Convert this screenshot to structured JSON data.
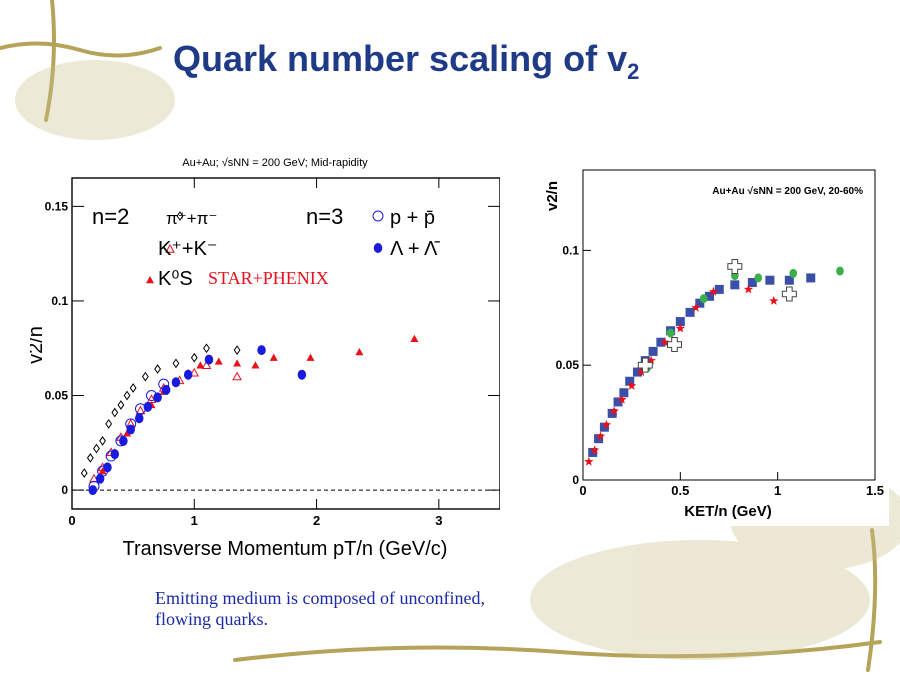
{
  "slide": {
    "title_main": "Quark number scaling of v",
    "title_sub": "2",
    "caption_line1": "Emitting medium is composed of unconfined,",
    "caption_line2": "flowing quarks."
  },
  "colors": {
    "title": "#1f3a87",
    "caption": "#1a2aa8",
    "red": "#e8101a",
    "blue": "#1a1adf",
    "right_blue": "#3a4fa8",
    "green": "#3cae4a",
    "decor": "#b6a35a"
  },
  "chart_data": [
    {
      "type": "scatter",
      "title": "Au+Au; √sNN = 200 GeV; Mid-rapidity",
      "xlabel": "Transverse Momentum pT/n (GeV/c)",
      "ylabel": "v2/n",
      "xlim": [
        0,
        3.5
      ],
      "ylim": [
        -0.01,
        0.165
      ],
      "xticks": [
        "0",
        "1",
        "2",
        "3"
      ],
      "yticks": [
        "0",
        "0.05",
        "0.1",
        "0.15"
      ],
      "legend": {
        "n2": "n=2",
        "n3": "n=3",
        "pion": "π⁺+π⁻",
        "kaon": "K⁺+K⁻",
        "k0s": "K⁰S",
        "proton": "p + p̄",
        "lambda": "Λ + Λ̄"
      },
      "annotation": "STAR+PHENIX",
      "grid": false,
      "series": [
        {
          "name": "π⁺+π⁻",
          "marker": "open-diamond",
          "color": "#000000",
          "x": [
            0.1,
            0.15,
            0.2,
            0.25,
            0.3,
            0.35,
            0.4,
            0.45,
            0.5,
            0.6,
            0.7,
            0.85,
            1.0,
            1.1,
            1.35
          ],
          "y": [
            0.009,
            0.017,
            0.022,
            0.026,
            0.035,
            0.041,
            0.045,
            0.05,
            0.054,
            0.06,
            0.064,
            0.067,
            0.07,
            0.075,
            0.074
          ]
        },
        {
          "name": "K⁺+K⁻",
          "marker": "open-triangle",
          "color": "#e8101a",
          "x": [
            0.18,
            0.25,
            0.32,
            0.4,
            0.48,
            0.56,
            0.65,
            0.75,
            0.88,
            1.0,
            1.1,
            1.35
          ],
          "y": [
            0.006,
            0.012,
            0.02,
            0.028,
            0.035,
            0.042,
            0.048,
            0.054,
            0.058,
            0.062,
            0.066,
            0.06
          ]
        },
        {
          "name": "K⁰S",
          "marker": "filled-triangle",
          "color": "#e8101a",
          "x": [
            0.25,
            0.35,
            0.45,
            0.55,
            0.65,
            0.75,
            0.85,
            0.95,
            1.05,
            1.2,
            1.35,
            1.5,
            1.65,
            1.95,
            2.35,
            2.8
          ],
          "y": [
            0.01,
            0.02,
            0.03,
            0.038,
            0.045,
            0.052,
            0.057,
            0.062,
            0.066,
            0.068,
            0.067,
            0.066,
            0.07,
            0.07,
            0.073,
            0.08
          ]
        },
        {
          "name": "p + p̄",
          "marker": "open-circle",
          "color": "#1a1adf",
          "x": [
            0.18,
            0.25,
            0.32,
            0.4,
            0.48,
            0.56,
            0.65,
            0.75
          ],
          "y": [
            0.002,
            0.01,
            0.018,
            0.026,
            0.035,
            0.043,
            0.05,
            0.056
          ]
        },
        {
          "name": "Λ + Λ̄",
          "marker": "filled-circle",
          "color": "#1a1adf",
          "x": [
            0.17,
            0.23,
            0.29,
            0.35,
            0.42,
            0.48,
            0.55,
            0.62,
            0.7,
            0.77,
            0.85,
            0.95,
            1.12,
            1.55,
            1.88
          ],
          "y": [
            0.0,
            0.006,
            0.012,
            0.019,
            0.026,
            0.032,
            0.038,
            0.044,
            0.049,
            0.053,
            0.057,
            0.061,
            0.069,
            0.074,
            0.061
          ]
        }
      ]
    },
    {
      "type": "scatter",
      "title": "Au+Au √sNN = 200 GeV, 20-60%",
      "xlabel": "KET/n (GeV)",
      "ylabel": "v2/n",
      "xlim": [
        0,
        1.5
      ],
      "ylim": [
        0,
        0.135
      ],
      "xticks": [
        "0",
        "0.5",
        "1",
        "1.5"
      ],
      "yticks": [
        "0",
        "0.05",
        "0.1"
      ],
      "grid": false,
      "series": [
        {
          "marker": "filled-square",
          "color": "#3a4fa8",
          "x": [
            0.05,
            0.08,
            0.11,
            0.15,
            0.18,
            0.21,
            0.24,
            0.28,
            0.32,
            0.36,
            0.4,
            0.45,
            0.5,
            0.55,
            0.6,
            0.65,
            0.7,
            0.78,
            0.87,
            0.96,
            1.06,
            1.17
          ],
          "y": [
            0.012,
            0.018,
            0.023,
            0.029,
            0.034,
            0.038,
            0.043,
            0.047,
            0.052,
            0.056,
            0.06,
            0.065,
            0.069,
            0.073,
            0.077,
            0.08,
            0.083,
            0.085,
            0.086,
            0.087,
            0.087,
            0.088
          ]
        },
        {
          "marker": "filled-star",
          "color": "#e8101a",
          "x": [
            0.03,
            0.06,
            0.09,
            0.12,
            0.16,
            0.2,
            0.25,
            0.3,
            0.35,
            0.42,
            0.5,
            0.58,
            0.67,
            0.85,
            0.98
          ],
          "y": [
            0.008,
            0.013,
            0.019,
            0.024,
            0.03,
            0.035,
            0.041,
            0.047,
            0.052,
            0.06,
            0.066,
            0.075,
            0.082,
            0.083,
            0.078
          ]
        },
        {
          "marker": "filled-circle",
          "color": "#3cae4a",
          "x": [
            0.33,
            0.45,
            0.62,
            0.78,
            0.9,
            1.08,
            1.32
          ],
          "y": [
            0.049,
            0.064,
            0.079,
            0.089,
            0.088,
            0.09,
            0.091
          ]
        },
        {
          "marker": "open-cross",
          "color": "#444444",
          "x": [
            0.32,
            0.47,
            0.78,
            1.06
          ],
          "y": [
            0.05,
            0.059,
            0.093,
            0.081
          ]
        }
      ]
    }
  ]
}
